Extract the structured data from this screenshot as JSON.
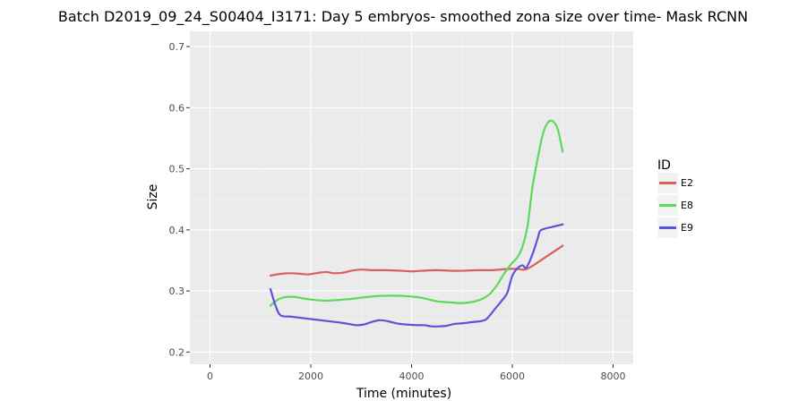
{
  "chart_data": {
    "type": "line",
    "title": "Batch D2019_09_24_S00404_I3171: Day 5 embryos- smoothed zona size over time- Mask RCNN",
    "xlabel": "Time (minutes)",
    "ylabel": "Size",
    "xlim": [
      -400,
      8400
    ],
    "ylim": [
      0.18,
      0.725
    ],
    "x_ticks": [
      0,
      2000,
      4000,
      6000,
      8000
    ],
    "y_ticks": [
      0.2,
      0.3,
      0.4,
      0.5,
      0.6,
      0.7
    ],
    "x_tick_labels": [
      "0",
      "2000",
      "4000",
      "6000",
      "8000"
    ],
    "y_tick_labels": [
      "0.2",
      "0.3",
      "0.4",
      "0.5",
      "0.6",
      "0.7"
    ],
    "grid": true,
    "legend": {
      "title": "ID",
      "position": "right"
    },
    "series": [
      {
        "name": "E2",
        "color": "#d9605a",
        "points": [
          [
            1200,
            0.325
          ],
          [
            1400,
            0.328
          ],
          [
            1600,
            0.329
          ],
          [
            1800,
            0.328
          ],
          [
            1950,
            0.327
          ],
          [
            2100,
            0.329
          ],
          [
            2300,
            0.331
          ],
          [
            2450,
            0.329
          ],
          [
            2650,
            0.33
          ],
          [
            2800,
            0.333
          ],
          [
            3000,
            0.335
          ],
          [
            3200,
            0.334
          ],
          [
            3500,
            0.334
          ],
          [
            3800,
            0.333
          ],
          [
            4000,
            0.332
          ],
          [
            4200,
            0.333
          ],
          [
            4500,
            0.334
          ],
          [
            4800,
            0.333
          ],
          [
            5000,
            0.333
          ],
          [
            5300,
            0.334
          ],
          [
            5600,
            0.334
          ],
          [
            5900,
            0.336
          ],
          [
            6100,
            0.336
          ],
          [
            6250,
            0.335
          ],
          [
            6400,
            0.341
          ],
          [
            6600,
            0.352
          ],
          [
            6800,
            0.363
          ],
          [
            7000,
            0.374
          ]
        ]
      },
      {
        "name": "E8",
        "color": "#5bd95b",
        "points": [
          [
            1200,
            0.276
          ],
          [
            1350,
            0.286
          ],
          [
            1500,
            0.29
          ],
          [
            1700,
            0.29
          ],
          [
            1900,
            0.287
          ],
          [
            2100,
            0.285
          ],
          [
            2300,
            0.284
          ],
          [
            2500,
            0.285
          ],
          [
            2800,
            0.287
          ],
          [
            3100,
            0.29
          ],
          [
            3400,
            0.292
          ],
          [
            3800,
            0.292
          ],
          [
            4100,
            0.29
          ],
          [
            4300,
            0.287
          ],
          [
            4500,
            0.283
          ],
          [
            4800,
            0.281
          ],
          [
            5000,
            0.28
          ],
          [
            5200,
            0.282
          ],
          [
            5400,
            0.287
          ],
          [
            5550,
            0.295
          ],
          [
            5700,
            0.31
          ],
          [
            5850,
            0.33
          ],
          [
            6000,
            0.346
          ],
          [
            6100,
            0.355
          ],
          [
            6200,
            0.372
          ],
          [
            6300,
            0.405
          ],
          [
            6400,
            0.47
          ],
          [
            6500,
            0.515
          ],
          [
            6600,
            0.555
          ],
          [
            6700,
            0.575
          ],
          [
            6800,
            0.578
          ],
          [
            6900,
            0.565
          ],
          [
            7000,
            0.528
          ]
        ]
      },
      {
        "name": "E9",
        "color": "#5b54d9",
        "points": [
          [
            1200,
            0.303
          ],
          [
            1300,
            0.276
          ],
          [
            1400,
            0.26
          ],
          [
            1600,
            0.258
          ],
          [
            1800,
            0.256
          ],
          [
            2000,
            0.254
          ],
          [
            2200,
            0.252
          ],
          [
            2400,
            0.25
          ],
          [
            2600,
            0.248
          ],
          [
            2750,
            0.246
          ],
          [
            2900,
            0.244
          ],
          [
            3050,
            0.245
          ],
          [
            3200,
            0.249
          ],
          [
            3350,
            0.252
          ],
          [
            3500,
            0.251
          ],
          [
            3700,
            0.247
          ],
          [
            3900,
            0.245
          ],
          [
            4100,
            0.244
          ],
          [
            4250,
            0.244
          ],
          [
            4400,
            0.242
          ],
          [
            4550,
            0.242
          ],
          [
            4700,
            0.243
          ],
          [
            4850,
            0.246
          ],
          [
            5000,
            0.247
          ],
          [
            5200,
            0.249
          ],
          [
            5400,
            0.251
          ],
          [
            5500,
            0.255
          ],
          [
            5650,
            0.27
          ],
          [
            5800,
            0.285
          ],
          [
            5900,
            0.297
          ],
          [
            6000,
            0.325
          ],
          [
            6100,
            0.337
          ],
          [
            6200,
            0.342
          ],
          [
            6250,
            0.338
          ],
          [
            6300,
            0.341
          ],
          [
            6400,
            0.36
          ],
          [
            6500,
            0.385
          ],
          [
            6550,
            0.398
          ],
          [
            6650,
            0.402
          ],
          [
            6800,
            0.405
          ],
          [
            7000,
            0.409
          ]
        ]
      }
    ]
  }
}
